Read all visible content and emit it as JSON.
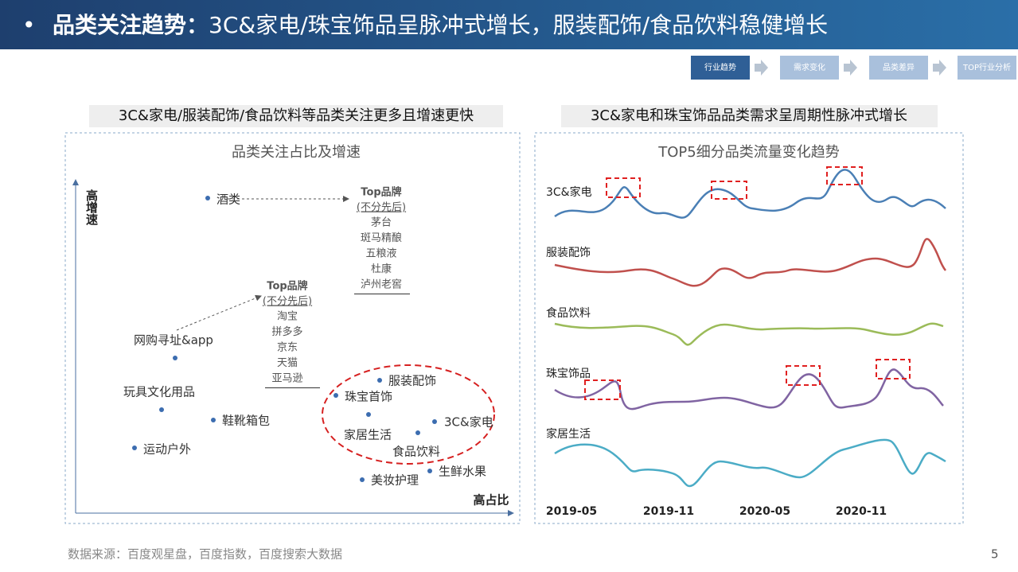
{
  "header": {
    "title_bold": "品类关注趋势：",
    "title_rest": "3C&家电/珠宝饰品呈脉冲式增长，服装配饰/食品饮料稳健增长"
  },
  "nav": [
    "行业趋势",
    "需求变化",
    "品类差异",
    "TOP行业分析"
  ],
  "left": {
    "heading": "3C&家电/服装配饰/食品饮料等品类关注更多且增速更快",
    "chart_title": "品类关注占比及增速",
    "y_axis_label": "高增速",
    "x_axis_label": "高占比",
    "points": [
      "酒类",
      "网购寻址&app",
      "玩具文化用品",
      "鞋靴箱包",
      "运动户外",
      "服装配饰",
      "珠宝首饰",
      "家居生活",
      "食品饮料",
      "3C&家电",
      "美妆护理",
      "生鲜水果"
    ],
    "brand_groups": [
      {
        "title": "Top品牌",
        "note": "(不分先后)",
        "brands": [
          "茅台",
          "斑马精酿",
          "五粮液",
          "杜康",
          "泸州老窖"
        ]
      },
      {
        "title": "Top品牌",
        "note": "(不分先后)",
        "brands": [
          "淘宝",
          "拼多多",
          "京东",
          "天猫",
          "亚马逊"
        ]
      }
    ]
  },
  "right": {
    "heading": "3C&家电和珠宝饰品品类需求呈周期性脉冲式增长",
    "chart_title": "TOP5细分品类流量变化趋势",
    "series": [
      "3C&家电",
      "服装配饰",
      "食品饮料",
      "珠宝饰品",
      "家居生活"
    ],
    "x_labels": [
      "2019-05",
      "2019-11",
      "2020-05",
      "2020-11"
    ]
  },
  "footer": {
    "source": "数据来源：百度观星盘，百度指数，百度搜索大数据",
    "page": "5"
  }
}
